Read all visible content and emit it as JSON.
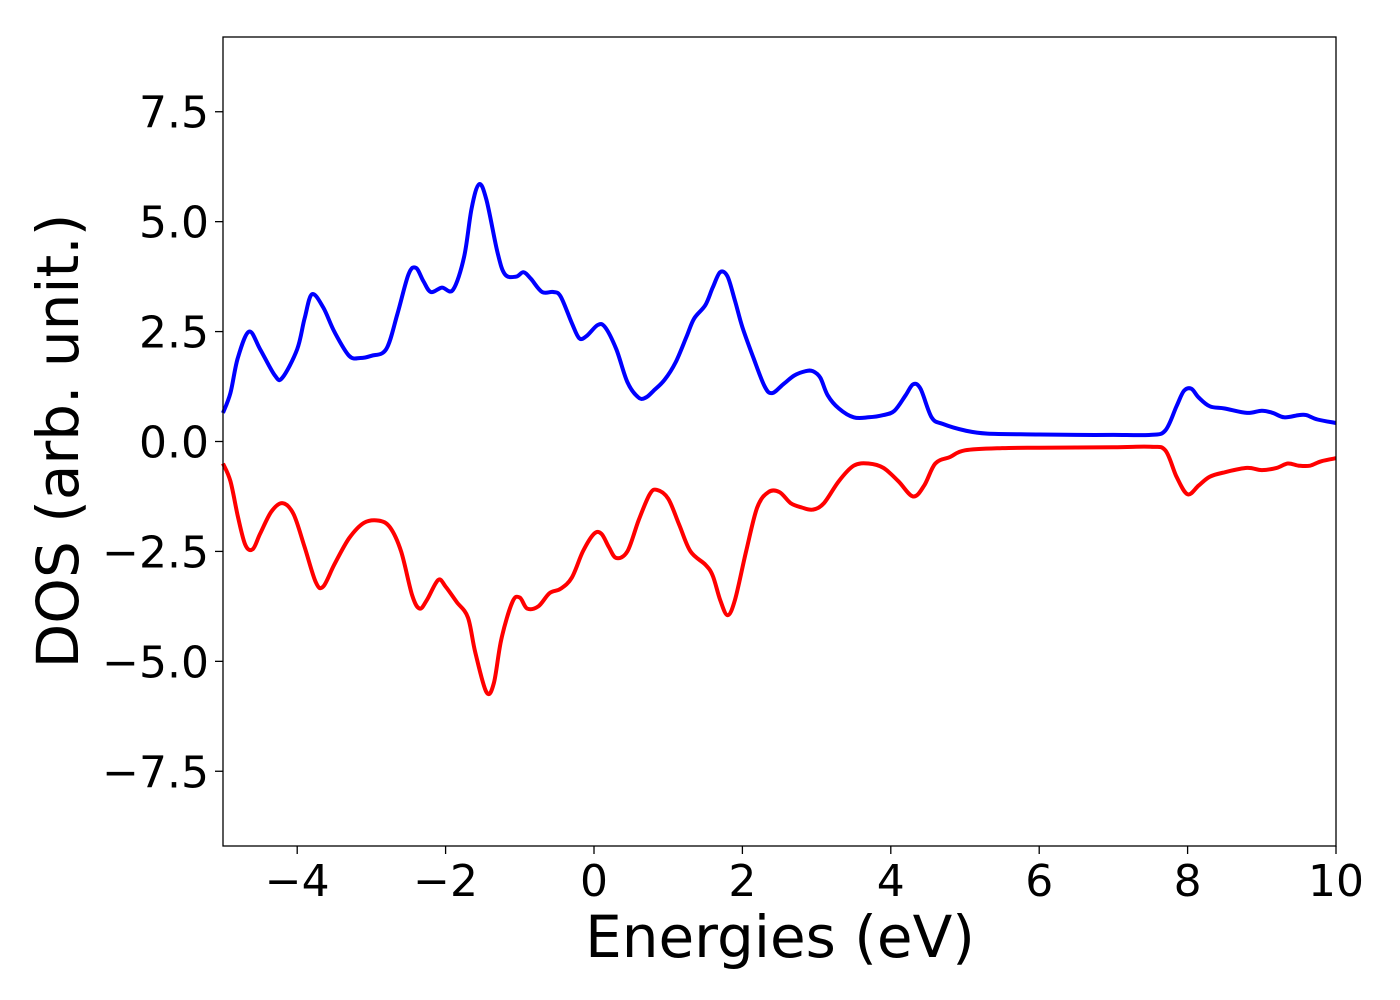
{
  "chart_data": {
    "type": "line",
    "title": "",
    "xlabel": "Energies (eV)",
    "ylabel": "DOS (arb. unit.)",
    "xlim": [
      -5,
      10
    ],
    "ylim": [
      -9.2,
      9.2
    ],
    "x_ticks": [
      -4,
      -2,
      0,
      2,
      4,
      6,
      8,
      10
    ],
    "x_tick_labels": [
      "−4",
      "−2",
      "0",
      "2",
      "4",
      "6",
      "8",
      "10"
    ],
    "y_ticks": [
      -7.5,
      -5.0,
      -2.5,
      0.0,
      2.5,
      5.0,
      7.5
    ],
    "y_tick_labels": [
      "−7.5",
      "−5.0",
      "−2.5",
      "0.0",
      "2.5",
      "5.0",
      "7.5"
    ],
    "grid": false,
    "series": [
      {
        "color": "#0000ff",
        "points": [
          [
            -5.0,
            0.65
          ],
          [
            -4.9,
            1.1
          ],
          [
            -4.8,
            1.9
          ],
          [
            -4.65,
            2.5
          ],
          [
            -4.5,
            2.1
          ],
          [
            -4.3,
            1.5
          ],
          [
            -4.2,
            1.45
          ],
          [
            -4.0,
            2.1
          ],
          [
            -3.9,
            2.8
          ],
          [
            -3.8,
            3.35
          ],
          [
            -3.65,
            3.05
          ],
          [
            -3.5,
            2.5
          ],
          [
            -3.3,
            1.95
          ],
          [
            -3.15,
            1.9
          ],
          [
            -3.0,
            1.95
          ],
          [
            -2.8,
            2.1
          ],
          [
            -2.65,
            2.9
          ],
          [
            -2.5,
            3.8
          ],
          [
            -2.4,
            3.95
          ],
          [
            -2.3,
            3.65
          ],
          [
            -2.2,
            3.4
          ],
          [
            -2.05,
            3.5
          ],
          [
            -1.9,
            3.45
          ],
          [
            -1.75,
            4.2
          ],
          [
            -1.65,
            5.3
          ],
          [
            -1.55,
            5.85
          ],
          [
            -1.45,
            5.5
          ],
          [
            -1.3,
            4.3
          ],
          [
            -1.2,
            3.8
          ],
          [
            -1.05,
            3.75
          ],
          [
            -0.95,
            3.85
          ],
          [
            -0.85,
            3.7
          ],
          [
            -0.7,
            3.4
          ],
          [
            -0.55,
            3.4
          ],
          [
            -0.45,
            3.3
          ],
          [
            -0.3,
            2.7
          ],
          [
            -0.2,
            2.35
          ],
          [
            -0.1,
            2.4
          ],
          [
            0.05,
            2.65
          ],
          [
            0.15,
            2.6
          ],
          [
            0.3,
            2.1
          ],
          [
            0.45,
            1.35
          ],
          [
            0.6,
            1.0
          ],
          [
            0.7,
            1.0
          ],
          [
            0.8,
            1.15
          ],
          [
            0.95,
            1.4
          ],
          [
            1.1,
            1.8
          ],
          [
            1.25,
            2.4
          ],
          [
            1.35,
            2.8
          ],
          [
            1.5,
            3.1
          ],
          [
            1.6,
            3.5
          ],
          [
            1.7,
            3.85
          ],
          [
            1.8,
            3.75
          ],
          [
            1.9,
            3.2
          ],
          [
            2.0,
            2.6
          ],
          [
            2.15,
            1.9
          ],
          [
            2.3,
            1.25
          ],
          [
            2.4,
            1.1
          ],
          [
            2.55,
            1.3
          ],
          [
            2.7,
            1.5
          ],
          [
            2.85,
            1.6
          ],
          [
            2.95,
            1.6
          ],
          [
            3.05,
            1.45
          ],
          [
            3.15,
            1.05
          ],
          [
            3.3,
            0.75
          ],
          [
            3.5,
            0.55
          ],
          [
            3.7,
            0.55
          ],
          [
            3.9,
            0.6
          ],
          [
            4.05,
            0.7
          ],
          [
            4.2,
            1.05
          ],
          [
            4.3,
            1.3
          ],
          [
            4.4,
            1.2
          ],
          [
            4.55,
            0.55
          ],
          [
            4.7,
            0.4
          ],
          [
            5.0,
            0.25
          ],
          [
            5.3,
            0.18
          ],
          [
            6.0,
            0.16
          ],
          [
            6.5,
            0.15
          ],
          [
            7.0,
            0.15
          ],
          [
            7.5,
            0.15
          ],
          [
            7.7,
            0.25
          ],
          [
            7.85,
            0.8
          ],
          [
            7.95,
            1.15
          ],
          [
            8.05,
            1.2
          ],
          [
            8.15,
            1.0
          ],
          [
            8.3,
            0.8
          ],
          [
            8.5,
            0.75
          ],
          [
            8.8,
            0.65
          ],
          [
            9.0,
            0.7
          ],
          [
            9.15,
            0.65
          ],
          [
            9.3,
            0.55
          ],
          [
            9.5,
            0.6
          ],
          [
            9.6,
            0.6
          ],
          [
            9.75,
            0.5
          ],
          [
            10.0,
            0.42
          ]
        ]
      },
      {
        "color": "#ff0000",
        "points": [
          [
            -5.0,
            -0.5
          ],
          [
            -4.9,
            -0.9
          ],
          [
            -4.8,
            -1.7
          ],
          [
            -4.7,
            -2.35
          ],
          [
            -4.6,
            -2.45
          ],
          [
            -4.5,
            -2.1
          ],
          [
            -4.35,
            -1.6
          ],
          [
            -4.2,
            -1.4
          ],
          [
            -4.05,
            -1.65
          ],
          [
            -3.9,
            -2.4
          ],
          [
            -3.75,
            -3.2
          ],
          [
            -3.65,
            -3.3
          ],
          [
            -3.5,
            -2.8
          ],
          [
            -3.3,
            -2.2
          ],
          [
            -3.1,
            -1.85
          ],
          [
            -2.9,
            -1.8
          ],
          [
            -2.75,
            -1.95
          ],
          [
            -2.6,
            -2.5
          ],
          [
            -2.45,
            -3.5
          ],
          [
            -2.35,
            -3.8
          ],
          [
            -2.25,
            -3.6
          ],
          [
            -2.1,
            -3.15
          ],
          [
            -2.0,
            -3.3
          ],
          [
            -1.85,
            -3.65
          ],
          [
            -1.7,
            -4.0
          ],
          [
            -1.6,
            -4.8
          ],
          [
            -1.45,
            -5.7
          ],
          [
            -1.35,
            -5.5
          ],
          [
            -1.25,
            -4.5
          ],
          [
            -1.1,
            -3.65
          ],
          [
            -1.0,
            -3.55
          ],
          [
            -0.9,
            -3.8
          ],
          [
            -0.75,
            -3.75
          ],
          [
            -0.6,
            -3.45
          ],
          [
            -0.45,
            -3.35
          ],
          [
            -0.3,
            -3.1
          ],
          [
            -0.15,
            -2.5
          ],
          [
            0.0,
            -2.1
          ],
          [
            0.1,
            -2.1
          ],
          [
            0.2,
            -2.4
          ],
          [
            0.3,
            -2.65
          ],
          [
            0.45,
            -2.5
          ],
          [
            0.6,
            -1.8
          ],
          [
            0.75,
            -1.2
          ],
          [
            0.85,
            -1.1
          ],
          [
            1.0,
            -1.3
          ],
          [
            1.15,
            -1.9
          ],
          [
            1.3,
            -2.5
          ],
          [
            1.5,
            -2.8
          ],
          [
            1.6,
            -3.05
          ],
          [
            1.7,
            -3.6
          ],
          [
            1.8,
            -3.95
          ],
          [
            1.9,
            -3.6
          ],
          [
            2.05,
            -2.5
          ],
          [
            2.2,
            -1.5
          ],
          [
            2.35,
            -1.15
          ],
          [
            2.5,
            -1.15
          ],
          [
            2.65,
            -1.4
          ],
          [
            2.8,
            -1.5
          ],
          [
            2.95,
            -1.55
          ],
          [
            3.1,
            -1.4
          ],
          [
            3.3,
            -0.9
          ],
          [
            3.5,
            -0.55
          ],
          [
            3.7,
            -0.5
          ],
          [
            3.9,
            -0.6
          ],
          [
            4.1,
            -0.9
          ],
          [
            4.3,
            -1.25
          ],
          [
            4.45,
            -1.0
          ],
          [
            4.6,
            -0.5
          ],
          [
            4.8,
            -0.35
          ],
          [
            5.0,
            -0.2
          ],
          [
            5.5,
            -0.15
          ],
          [
            6.0,
            -0.14
          ],
          [
            7.0,
            -0.13
          ],
          [
            7.5,
            -0.12
          ],
          [
            7.7,
            -0.2
          ],
          [
            7.85,
            -0.8
          ],
          [
            8.0,
            -1.2
          ],
          [
            8.15,
            -1.0
          ],
          [
            8.3,
            -0.8
          ],
          [
            8.5,
            -0.7
          ],
          [
            8.8,
            -0.6
          ],
          [
            9.0,
            -0.65
          ],
          [
            9.2,
            -0.6
          ],
          [
            9.35,
            -0.5
          ],
          [
            9.5,
            -0.55
          ],
          [
            9.65,
            -0.55
          ],
          [
            9.8,
            -0.45
          ],
          [
            10.0,
            -0.38
          ]
        ]
      }
    ]
  }
}
